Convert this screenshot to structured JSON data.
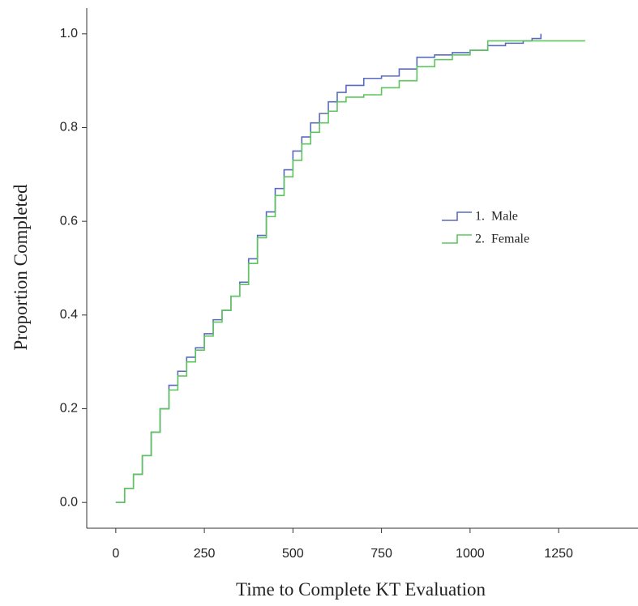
{
  "chart_data": {
    "type": "step",
    "xlabel": "Time to Complete KT Evaluation",
    "ylabel": "Proportion Completed",
    "x": [
      0,
      25,
      50,
      75,
      100,
      125,
      150,
      175,
      200,
      225,
      250,
      275,
      300,
      325,
      350,
      375,
      400,
      425,
      450,
      475,
      500,
      525,
      550,
      575,
      600,
      625,
      650,
      700,
      750,
      800,
      850,
      900,
      950,
      1000,
      1050,
      1100,
      1150,
      1175,
      1200,
      1250,
      1325
    ],
    "series": [
      {
        "name": "1.  Male",
        "color": "#5a6bbf",
        "values": [
          0,
          0.03,
          0.06,
          0.1,
          0.15,
          0.2,
          0.25,
          0.28,
          0.31,
          0.33,
          0.36,
          0.39,
          0.41,
          0.44,
          0.47,
          0.52,
          0.57,
          0.62,
          0.67,
          0.71,
          0.75,
          0.78,
          0.81,
          0.83,
          0.855,
          0.875,
          0.89,
          0.905,
          0.91,
          0.925,
          0.95,
          0.955,
          0.96,
          0.965,
          0.975,
          0.98,
          0.985,
          0.99,
          1.0,
          null,
          null
        ]
      },
      {
        "name": "2.  Female",
        "color": "#5ec55e",
        "values": [
          0,
          0.03,
          0.06,
          0.1,
          0.15,
          0.2,
          0.24,
          0.27,
          0.3,
          0.325,
          0.355,
          0.385,
          0.41,
          0.44,
          0.465,
          0.51,
          0.565,
          0.61,
          0.655,
          0.695,
          0.73,
          0.765,
          0.79,
          0.81,
          0.835,
          0.855,
          0.865,
          0.87,
          0.885,
          0.9,
          0.93,
          0.945,
          0.955,
          0.965,
          0.985,
          0.985,
          0.985,
          0.985,
          0.985,
          0.985,
          0.985
        ]
      }
    ],
    "xlim": [
      -82,
      1474
    ],
    "ylim": [
      -0.055,
      1.055
    ],
    "xticks": [
      0,
      250,
      500,
      750,
      1000,
      1250
    ],
    "yticks": [
      {
        "value": 0,
        "label": "0.0"
      },
      0.2,
      0.4,
      0.6,
      0.8,
      {
        "value": 1,
        "label": "1.0"
      }
    ]
  }
}
